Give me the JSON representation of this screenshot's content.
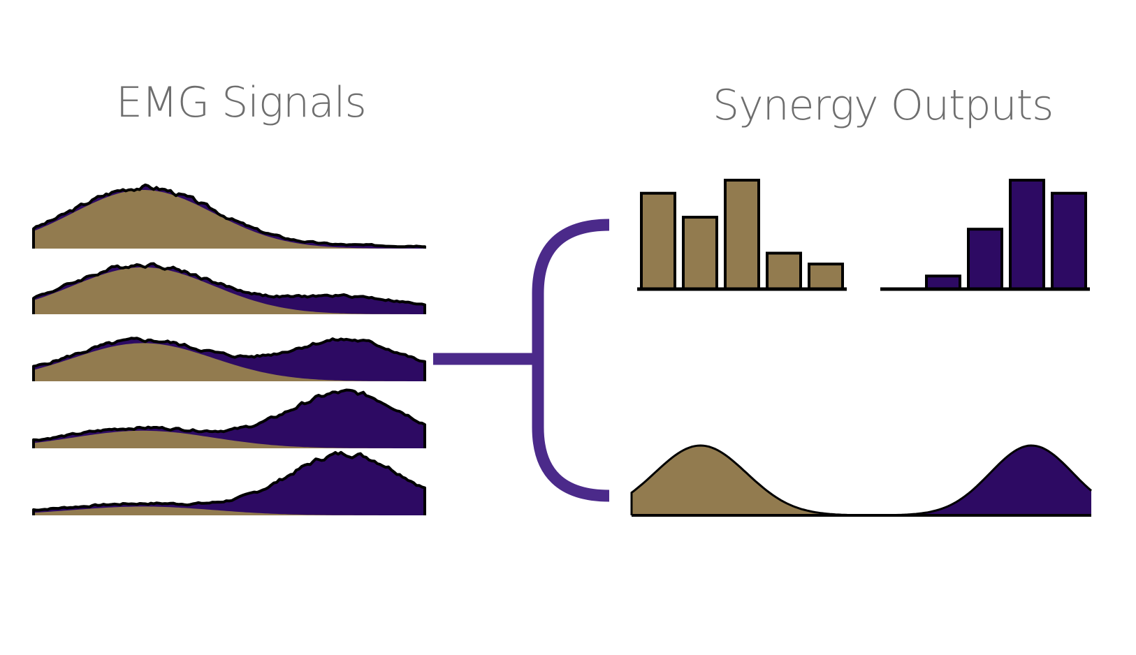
{
  "titles": {
    "left": "EMG Signals",
    "right": "Synergy Outputs"
  },
  "colors": {
    "synergy_a": "#927b4f",
    "synergy_b": "#2d0a63",
    "connector": "#4b2a8a",
    "outline": "#000000",
    "title_text": "#6e6e6e"
  },
  "emg_signals": [
    {
      "a": 1.0,
      "b": 0.0
    },
    {
      "a": 0.8,
      "b": 0.25
    },
    {
      "a": 0.65,
      "b": 0.65
    },
    {
      "a": 0.3,
      "b": 0.9
    },
    {
      "a": 0.15,
      "b": 1.0
    }
  ],
  "synergy_weights": [
    {
      "bars": [
        0.88,
        0.66,
        1.0,
        0.33,
        0.23
      ]
    },
    {
      "bars": [
        0.0,
        0.12,
        0.55,
        1.0,
        0.88
      ]
    }
  ]
}
